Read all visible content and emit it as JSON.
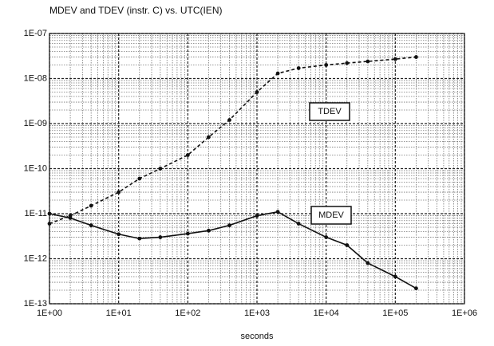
{
  "chart_data": {
    "type": "line",
    "title": "MDEV and TDEV (instr. C) vs. UTC(IEN)",
    "x_label": "seconds",
    "x": [
      1,
      2,
      4,
      10,
      20,
      40,
      100,
      200,
      400,
      1000,
      2000,
      4000,
      10000,
      20000,
      40000,
      100000,
      200000
    ],
    "series": [
      {
        "name": "MDEV",
        "color": "#111111",
        "style": "solid",
        "values": [
          1e-11,
          8e-12,
          5.5e-12,
          3.5e-12,
          2.8e-12,
          3e-12,
          3.6e-12,
          4.2e-12,
          5.5e-12,
          9e-12,
          1.1e-11,
          6e-12,
          3e-12,
          2e-12,
          8e-13,
          4e-13,
          2.2e-13
        ]
      },
      {
        "name": "TDEV",
        "color": "#111111",
        "style": "dashed",
        "values": [
          6e-12,
          9e-12,
          1.5e-11,
          3e-11,
          6e-11,
          1e-10,
          2e-10,
          5e-10,
          1.2e-09,
          5e-09,
          1.3e-08,
          1.7e-08,
          2e-08,
          2.2e-08,
          2.4e-08,
          2.7e-08,
          3e-08
        ]
      }
    ],
    "xlog": true,
    "ylog": true,
    "xlim": [
      1,
      1000000
    ],
    "ylim": [
      1e-13,
      1e-07
    ],
    "xticks": [
      {
        "value": 1,
        "label": "1E+00"
      },
      {
        "value": 10,
        "label": "1E+01"
      },
      {
        "value": 100,
        "label": "1E+02"
      },
      {
        "value": 1000,
        "label": "1E+03"
      },
      {
        "value": 10000,
        "label": "1E+04"
      },
      {
        "value": 100000,
        "label": "1E+05"
      },
      {
        "value": 1000000,
        "label": "1E+06"
      }
    ],
    "yticks": [
      {
        "value": 1e-13,
        "label": "1E-13"
      },
      {
        "value": 1e-12,
        "label": "1E-12"
      },
      {
        "value": 1e-11,
        "label": "1E-11"
      },
      {
        "value": 1e-10,
        "label": "1E-10"
      },
      {
        "value": 1e-09,
        "label": "1E-09"
      },
      {
        "value": 1e-08,
        "label": "1E-08"
      },
      {
        "value": 1e-07,
        "label": "1E-07"
      }
    ],
    "grid": true,
    "minor_grid": true
  }
}
